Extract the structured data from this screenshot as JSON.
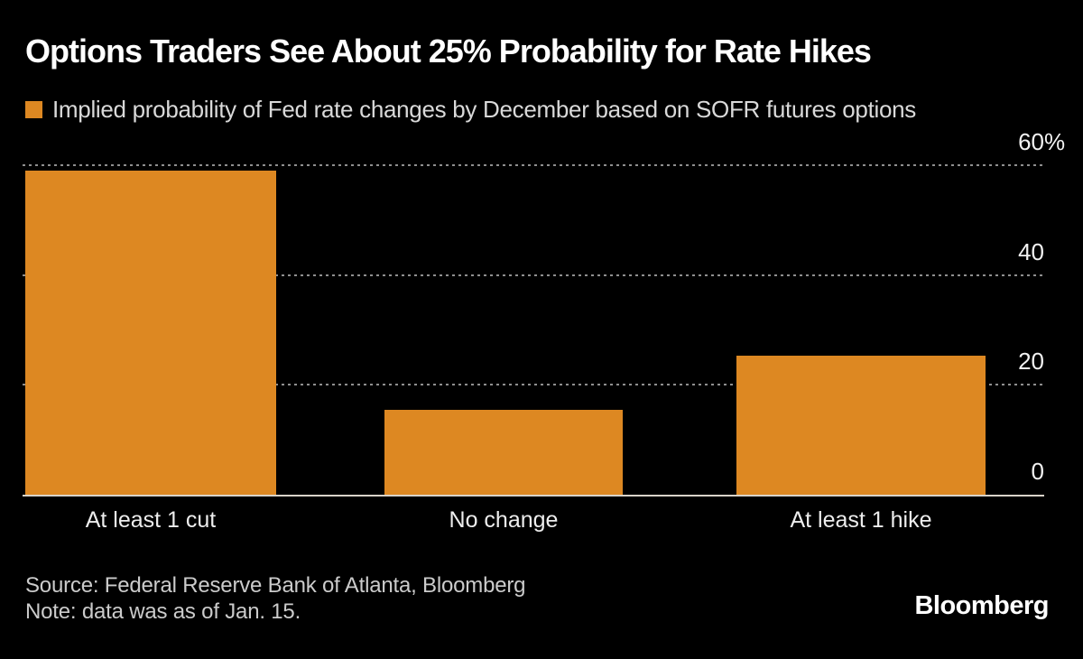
{
  "colors": {
    "background": "#000000",
    "bar_orange": "#DD8822",
    "gridline": "#8F8F8F",
    "axis_line": "#D9D3C9",
    "title_text": "#FFFFFF",
    "muted_text": "#CBCBCB"
  },
  "chart_data": {
    "type": "bar",
    "title": "Options Traders See About 25% Probability for Rate Hikes",
    "series_label": "Implied probability of Fed rate changes by December based on SOFR futures options",
    "categories": [
      "At least 1 cut",
      "No change",
      "At least 1 hike"
    ],
    "values": [
      59,
      15.5,
      25.3
    ],
    "xlabel": "",
    "ylabel": "",
    "ylim": [
      0,
      60
    ],
    "yticks": [
      {
        "value": 60,
        "label": "60",
        "suffix": "%"
      },
      {
        "value": 40,
        "label": "40",
        "suffix": ""
      },
      {
        "value": 20,
        "label": "20",
        "suffix": ""
      },
      {
        "value": 0,
        "label": "0",
        "suffix": ""
      }
    ],
    "grid": "horizontal dotted",
    "legend_position": "top-left",
    "axis_side": "right",
    "bar_color": "#DD8822"
  },
  "footer": {
    "source": "Source: Federal Reserve Bank of Atlanta, Bloomberg",
    "note": "Note: data was as of Jan. 15.",
    "logo": "Bloomberg"
  }
}
